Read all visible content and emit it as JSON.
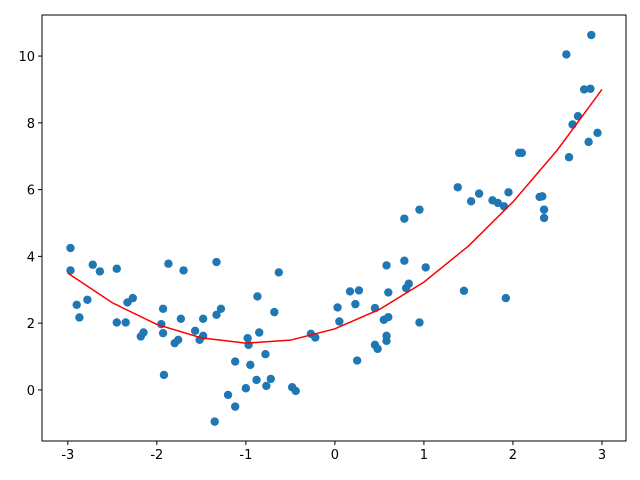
{
  "chart_data": {
    "type": "scatter",
    "xlim": [
      -3.29,
      3.27
    ],
    "ylim": [
      -1.53,
      11.23
    ],
    "xticks": [
      -3,
      -2,
      -1,
      0,
      1,
      2,
      3
    ],
    "yticks": [
      0,
      2,
      4,
      6,
      8,
      10
    ],
    "series": [
      {
        "color": "#1f77b4",
        "x": [
          -2.97,
          -2.97,
          -2.9,
          -2.87,
          -2.78,
          -2.72,
          -2.64,
          -2.45,
          -2.45,
          -2.35,
          -2.33,
          -2.27,
          -2.18,
          -2.15,
          -1.95,
          -1.93,
          -1.93,
          -1.92,
          -1.87,
          -1.8,
          -1.76,
          -1.73,
          -1.7,
          -1.57,
          -1.52,
          -1.48,
          -1.48,
          -1.35,
          -1.33,
          -1.33,
          -1.28,
          -1.2,
          -1.12,
          -1.12,
          -1.0,
          -0.98,
          -0.97,
          -0.95,
          -0.88,
          -0.87,
          -0.85,
          -0.78,
          -0.77,
          -0.72,
          -0.68,
          -0.63,
          -0.48,
          -0.44,
          -0.27,
          -0.22,
          0.03,
          0.05,
          0.17,
          0.23,
          0.25,
          0.27,
          0.45,
          0.45,
          0.48,
          0.55,
          0.58,
          0.58,
          0.58,
          0.6,
          0.6,
          0.78,
          0.78,
          0.8,
          0.83,
          0.95,
          0.95,
          1.02,
          1.38,
          1.45,
          1.53,
          1.62,
          1.77,
          1.83,
          1.9,
          1.92,
          1.95,
          2.07,
          2.1,
          2.3,
          2.33,
          2.35,
          2.35,
          2.6,
          2.63,
          2.67,
          2.73,
          2.8,
          2.85,
          2.87,
          2.88,
          2.95
        ],
        "values": [
          4.25,
          3.58,
          2.55,
          2.17,
          2.7,
          3.75,
          3.55,
          3.63,
          2.02,
          2.02,
          2.62,
          2.75,
          1.6,
          1.72,
          1.97,
          2.43,
          1.7,
          0.45,
          3.78,
          1.4,
          1.5,
          2.13,
          3.58,
          1.77,
          1.5,
          1.62,
          2.13,
          -0.95,
          3.83,
          2.25,
          2.43,
          -0.15,
          -0.5,
          0.85,
          0.05,
          1.55,
          1.35,
          0.75,
          0.3,
          2.8,
          1.72,
          1.07,
          0.12,
          0.33,
          2.33,
          3.52,
          0.08,
          -0.03,
          1.68,
          1.57,
          2.47,
          2.05,
          2.95,
          2.57,
          0.88,
          2.98,
          2.45,
          1.35,
          1.23,
          2.1,
          3.73,
          1.62,
          1.47,
          2.18,
          2.92,
          5.13,
          3.87,
          3.05,
          3.18,
          5.4,
          2.02,
          3.67,
          6.07,
          2.97,
          5.65,
          5.88,
          5.68,
          5.6,
          5.5,
          2.75,
          5.92,
          7.1,
          7.1,
          5.78,
          5.8,
          5.4,
          5.15,
          10.05,
          6.97,
          7.95,
          8.2,
          9.0,
          7.43,
          9.02,
          10.63,
          7.7
        ]
      }
    ],
    "line": {
      "color": "#ff0000",
      "x": [
        -3,
        -2.5,
        -2,
        -1.5,
        -1,
        -0.5,
        0,
        0.5,
        1,
        1.5,
        2,
        2.5,
        3
      ],
      "values": [
        3.5,
        2.61,
        1.96,
        1.56,
        1.4,
        1.49,
        1.83,
        2.41,
        3.23,
        4.31,
        5.63,
        7.19,
        9.0
      ]
    }
  }
}
